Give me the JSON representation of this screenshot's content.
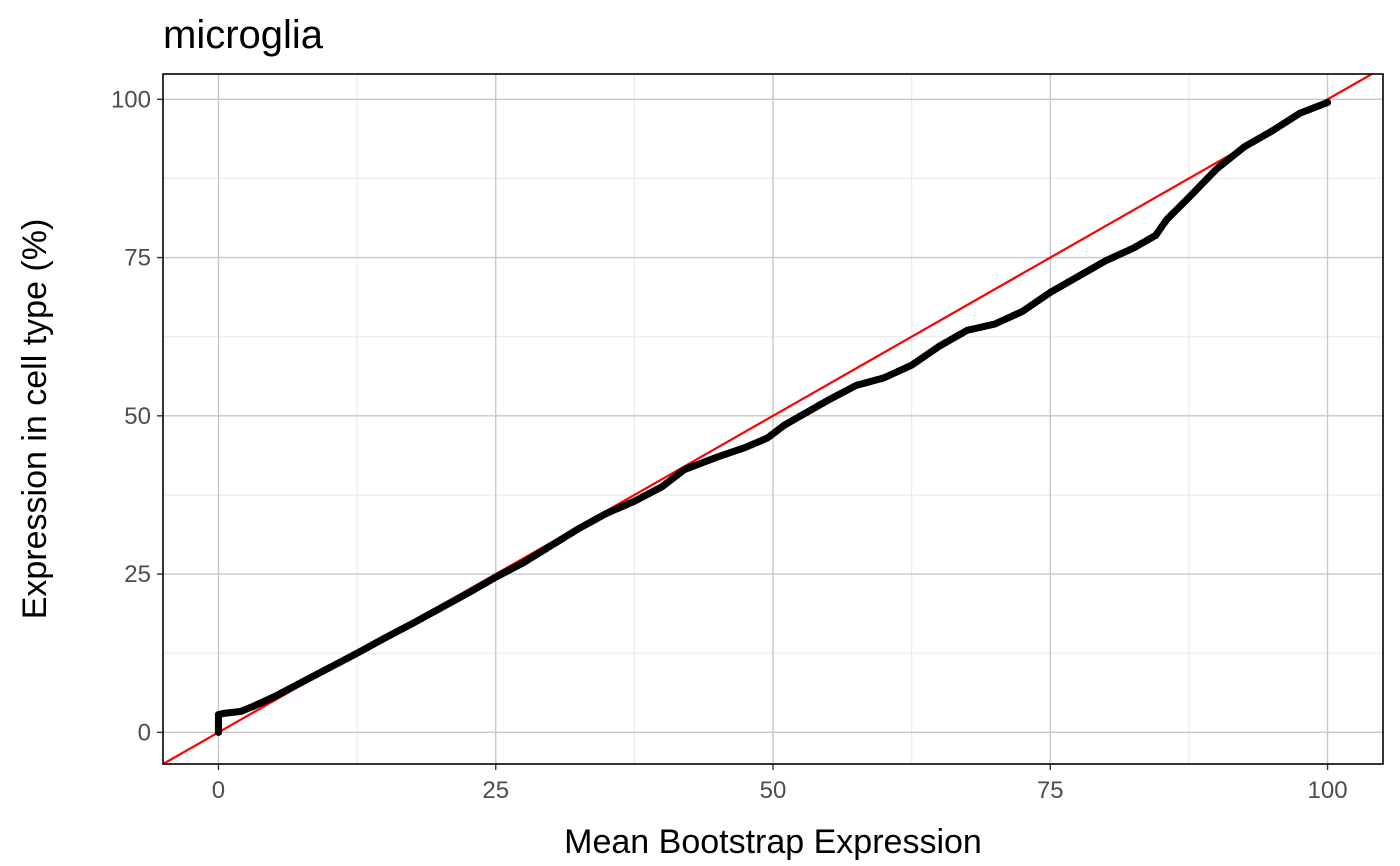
{
  "chart_data": {
    "type": "scatter",
    "title": "microglia",
    "xlabel": "Mean Bootstrap Expression",
    "ylabel": "Expression in cell type (%)",
    "xlim": [
      -5,
      105
    ],
    "ylim": [
      -5,
      104
    ],
    "x_ticks": [
      0,
      25,
      50,
      75,
      100
    ],
    "y_ticks": [
      0,
      25,
      50,
      75,
      100
    ],
    "x_tick_labels": [
      "0",
      "25",
      "50",
      "75",
      "100"
    ],
    "y_tick_labels": [
      "0",
      "25",
      "50",
      "75",
      "100"
    ],
    "grid": true,
    "legend": "none",
    "reference_line": {
      "intercept": 0,
      "slope": 1,
      "color": "#ff0000"
    },
    "series": [
      {
        "color": "#000000",
        "x": [
          0,
          0,
          0,
          0.5,
          1,
          2,
          3,
          5,
          7.5,
          10,
          12.5,
          15,
          17.5,
          20,
          22.5,
          25,
          27.5,
          30,
          32.5,
          35,
          37.5,
          40,
          42,
          45,
          47.5,
          49.5,
          51,
          53,
          55,
          57.5,
          60,
          62.5,
          65,
          67.5,
          70,
          72.5,
          75,
          77.5,
          80,
          82.5,
          84.5,
          85.5,
          87.5,
          90,
          92.5,
          95,
          97.5,
          100
        ],
        "y": [
          0,
          1.5,
          2.8,
          3.0,
          3.1,
          3.3,
          4.0,
          5.6,
          7.9,
          10.2,
          12.5,
          14.9,
          17.2,
          19.6,
          22.0,
          24.5,
          26.8,
          29.5,
          32.2,
          34.6,
          36.5,
          38.8,
          41.5,
          43.5,
          45.0,
          46.5,
          48.5,
          50.5,
          52.5,
          54.8,
          56.0,
          58.0,
          61.0,
          63.5,
          64.5,
          66.5,
          69.5,
          72.0,
          74.5,
          76.5,
          78.5,
          81.0,
          84.5,
          89.0,
          92.5,
          95.0,
          97.8,
          99.5
        ]
      }
    ]
  }
}
